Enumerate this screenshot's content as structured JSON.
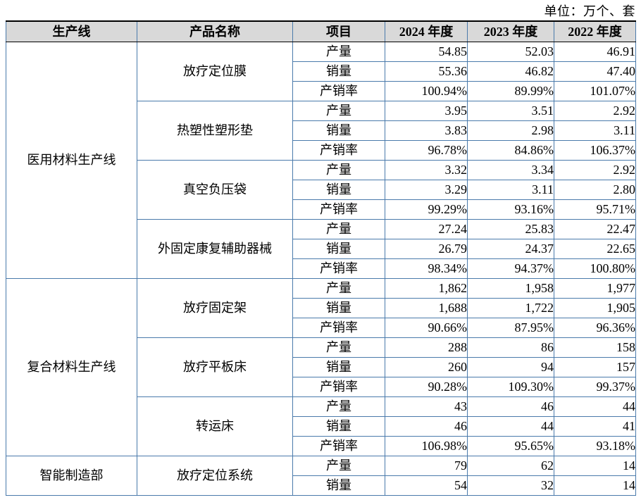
{
  "page": {
    "unit_note": "单位：万个、套"
  },
  "colors": {
    "border_blue": "#4a7aab",
    "header_background": "#d9d9d9",
    "header_rule_black": "#000000",
    "text": "#000000"
  },
  "table": {
    "headers": [
      "生产线",
      "产品名称",
      "项目",
      "2024 年度",
      "2023 年度",
      "2022 年度"
    ],
    "groups": [
      {
        "line": "医用材料生产线",
        "products": [
          {
            "name": "放疗定位膜",
            "rows": [
              [
                "产量",
                "54.85",
                "52.03",
                "46.91"
              ],
              [
                "销量",
                "55.36",
                "46.82",
                "47.40"
              ],
              [
                "产销率",
                "100.94%",
                "89.99%",
                "101.07%"
              ]
            ]
          },
          {
            "name": "热塑性塑形垫",
            "rows": [
              [
                "产量",
                "3.95",
                "3.51",
                "2.92"
              ],
              [
                "销量",
                "3.83",
                "2.98",
                "3.11"
              ],
              [
                "产销率",
                "96.78%",
                "84.86%",
                "106.37%"
              ]
            ]
          },
          {
            "name": "真空负压袋",
            "rows": [
              [
                "产量",
                "3.32",
                "3.34",
                "2.92"
              ],
              [
                "销量",
                "3.29",
                "3.11",
                "2.80"
              ],
              [
                "产销率",
                "99.29%",
                "93.16%",
                "95.71%"
              ]
            ]
          },
          {
            "name": "外固定康复辅助器械",
            "rows": [
              [
                "产量",
                "27.24",
                "25.83",
                "22.47"
              ],
              [
                "销量",
                "26.79",
                "24.37",
                "22.65"
              ],
              [
                "产销率",
                "98.34%",
                "94.37%",
                "100.80%"
              ]
            ]
          }
        ]
      },
      {
        "line": "复合材料生产线",
        "products": [
          {
            "name": "放疗固定架",
            "rows": [
              [
                "产量",
                "1,862",
                "1,958",
                "1,977"
              ],
              [
                "销量",
                "1,688",
                "1,722",
                "1,905"
              ],
              [
                "产销率",
                "90.66%",
                "87.95%",
                "96.36%"
              ]
            ]
          },
          {
            "name": "放疗平板床",
            "rows": [
              [
                "产量",
                "288",
                "86",
                "158"
              ],
              [
                "销量",
                "260",
                "94",
                "157"
              ],
              [
                "产销率",
                "90.28%",
                "109.30%",
                "99.37%"
              ]
            ]
          },
          {
            "name": "转运床",
            "rows": [
              [
                "产量",
                "43",
                "46",
                "44"
              ],
              [
                "销量",
                "46",
                "44",
                "41"
              ],
              [
                "产销率",
                "106.98%",
                "95.65%",
                "93.18%"
              ]
            ]
          }
        ]
      },
      {
        "line": "智能制造部",
        "products": [
          {
            "name": "放疗定位系统",
            "rows": [
              [
                "产量",
                "79",
                "62",
                "14"
              ],
              [
                "销量",
                "54",
                "32",
                "14"
              ]
            ]
          }
        ]
      }
    ]
  }
}
